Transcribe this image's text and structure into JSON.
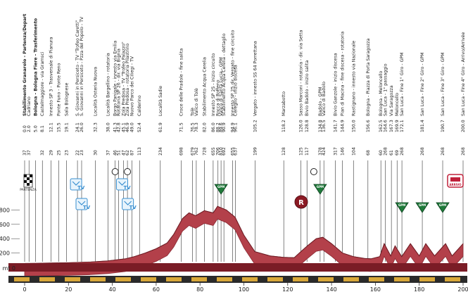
{
  "chart_data": {
    "type": "area",
    "title": "",
    "xlabel": "",
    "ylabel": "",
    "y_unit_label": "mt 0",
    "xlim": [
      0,
      200
    ],
    "ylim": [
      0,
      1000
    ],
    "x_ticks": [
      "0",
      "20",
      "40",
      "60",
      "80",
      "100",
      "120",
      "140",
      "160",
      "180",
      "200"
    ],
    "y_ticks": [
      "200",
      "400",
      "600",
      "800"
    ],
    "grid": false,
    "colors": {
      "profile": "#b3404a",
      "profile_dark": "#8b2a34",
      "base": "#7a1c26",
      "stripe_dark": "#2a2a2a",
      "stripe_gold": "#d8a83a",
      "gpm": "#1f7a3a"
    },
    "series": [
      {
        "x": [
          0,
          5,
          10,
          20,
          30,
          38,
          46,
          50,
          55,
          60,
          65,
          68,
          72,
          75,
          78,
          82,
          86,
          88,
          92,
          96,
          100,
          105,
          112,
          118,
          123,
          126,
          129,
          133,
          136,
          140,
          145,
          150,
          155,
          158,
          162,
          164,
          167,
          169,
          172,
          176,
          180,
          183,
          187,
          192,
          195,
          200
        ],
        "y": [
          55,
          56,
          60,
          65,
          75,
          90,
          120,
          150,
          200,
          260,
          340,
          460,
          680,
          760,
          720,
          790,
          760,
          850,
          800,
          700,
          450,
          220,
          160,
          140,
          135,
          220,
          300,
          400,
          420,
          330,
          200,
          150,
          125,
          120,
          150,
          330,
          160,
          300,
          150,
          330,
          160,
          330,
          160,
          330,
          160,
          330
        ]
      }
    ]
  },
  "stations": [
    {
      "km": "5.0",
      "name": "Bologna - Bologna Fiere - Trasferimento",
      "alt": ""
    },
    {
      "km": "0.0",
      "name": "Stabilimento Granarolo - Partenza/Depart",
      "alt": "37"
    },
    {
      "km": "2.0",
      "name": "Cadriano",
      "alt": "37"
    },
    {
      "km": "8.1",
      "name": "Castelmaggiore - via Gramsci",
      "alt": "32"
    },
    {
      "km": "12.1",
      "name": "Innesto SP 3 - Trasversale di Pianura",
      "alt": "29"
    },
    {
      "km": "15.5",
      "name": "Ponte Funo - Ponte Reno",
      "alt": "25"
    },
    {
      "km": "19.1",
      "name": "Sala Bolognese",
      "alt": "23"
    },
    {
      "km": "24.1",
      "name": "S. Giovanni in Persiceto - TV \"Trofeo Caretti\"",
      "alt": "22"
    },
    {
      "km": "26.0",
      "name": "S. Giovanni in Persiceto - Pzza del Popolo - TV",
      "alt": "23"
    },
    {
      "km": "32.3",
      "name": "Località Osteria Nuova",
      "alt": "30"
    },
    {
      "km": "38.0",
      "name": "Località Bargellino - rotatoria",
      "alt": "37"
    },
    {
      "km": "41.3",
      "name": "Borgo Panigale - innesto via Emilia",
      "alt": "46"
    },
    {
      "km": "42.8",
      "name": "Rotatoria SP 26 - dir. via Bignia",
      "alt": "51"
    },
    {
      "km": "45.1",
      "name": "Zola Predosa - TV \"Trofeo Palazzo\"",
      "alt": "47"
    },
    {
      "km": "46.9",
      "name": "Zola Predosa - rotatoria Pilastrino",
      "alt": "62"
    },
    {
      "km": "49.0",
      "name": "Nuovo Parco dei Ciliegi - TV",
      "alt": "87"
    },
    {
      "km": "52.4",
      "name": "Calderino",
      "alt": "113"
    },
    {
      "km": "61.9",
      "name": "Località Sadie",
      "alt": "234"
    },
    {
      "km": "71.5",
      "name": "Croce delle Pradole - fine salita",
      "alt": "698"
    },
    {
      "km": "76.5",
      "name": "Tolè",
      "alt": "679"
    },
    {
      "km": "78.3",
      "name": "Valico di Tolè",
      "alt": "762"
    },
    {
      "km": "82.0",
      "name": "Stabilimento Acqua Cerelia",
      "alt": "728"
    },
    {
      "km": "86.0",
      "name": "Innesto SP 25 - inizio circuito",
      "alt": "655"
    },
    {
      "km": "88.2",
      "name": "Rocca di Roffeno",
      "alt": "706"
    },
    {
      "km": "89.6",
      "name": "Valico di Santa Lucia - GPM",
      "alt": "810"
    },
    {
      "km": "90.9",
      "name": "Stabilimento Acqua Cerelia - dettaglio",
      "alt": "692"
    },
    {
      "km": "94.9",
      "name": "Innesto SP 25 dir. Vergato - fine circuito",
      "alt": "655"
    },
    {
      "km": "96.1",
      "name": "Cereglio - inizio discesa",
      "alt": "637"
    },
    {
      "km": "105.2",
      "name": "Vergato - innesto SS 64 Porrettana",
      "alt": "199"
    },
    {
      "km": "118.2",
      "name": "Marzabotto",
      "alt": "128"
    },
    {
      "km": "126.0",
      "name": "Sasso Marconi - rotatoria - dir. via Setta",
      "alt": "125"
    },
    {
      "km": "128.8",
      "name": "Bivio Badolo - inizio salita",
      "alt": "117"
    },
    {
      "km": "134.8",
      "name": "Badolo - GPM",
      "alt": "378"
    },
    {
      "km": "136.5",
      "name": "Valico di Badolo",
      "alt": "424"
    },
    {
      "km": "141.7",
      "name": "Bivio Ganzole - inizio discesa",
      "alt": "317"
    },
    {
      "km": "144.9",
      "name": "Pian di Macina - fine discesa - rotatoria",
      "alt": "146"
    },
    {
      "km": "150.0",
      "name": "Rastignano - innesto via Nazionale",
      "alt": "104"
    },
    {
      "km": "156.6",
      "name": "Bologna - Piazza di Porta Saragozza",
      "alt": "68"
    },
    {
      "km": "162.5",
      "name": "Bologna - Meloncello",
      "alt": "60"
    },
    {
      "km": "164.6",
      "name": "San Luca - 1° passaggio",
      "alt": "268"
    },
    {
      "km": "167.3",
      "name": "Via Saragozza",
      "alt": "61"
    },
    {
      "km": "169.9",
      "name": "Meloncello",
      "alt": "69"
    },
    {
      "km": "172.1",
      "name": "San Luca - Fine 1° Giro - GPM",
      "alt": "268"
    },
    {
      "km": "181.4",
      "name": "San Luca - Fine 2° Giro - GPM",
      "alt": "268"
    },
    {
      "km": "190.7",
      "name": "San Luca - Fine 3° Giro - GPM",
      "alt": "268"
    },
    {
      "km": "200.0",
      "name": "San Luca - Fine 4° Giro - Arrivo/Arrivée",
      "alt": "268"
    }
  ],
  "badges": {
    "start_label": "PARTENZA",
    "finish_label": "ARRIVO",
    "tv_label": "TV",
    "gpm_label": "GPM",
    "refuel_label": "R"
  }
}
